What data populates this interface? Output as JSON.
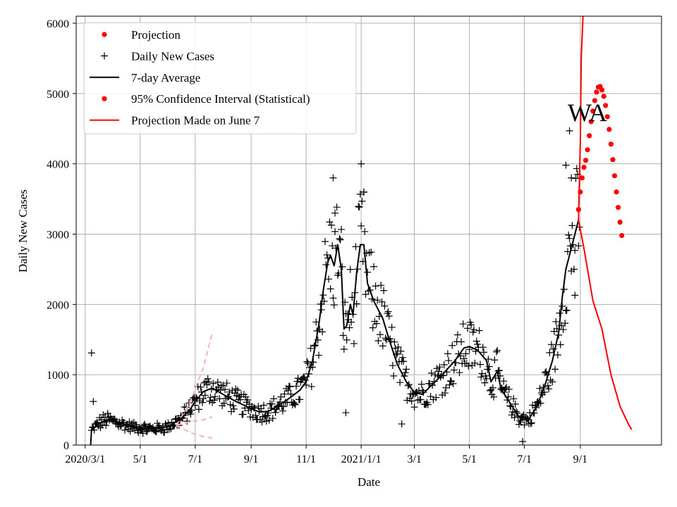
{
  "chart_data": {
    "type": "line",
    "title": "",
    "annotation": "WA",
    "xlabel": "Date",
    "ylabel": "Daily New Cases",
    "xlim": [
      "2020-02-20",
      "2021-11-30"
    ],
    "ylim": [
      0,
      6100
    ],
    "grid": true,
    "x_ticks": [
      {
        "date": "2020-03-01",
        "label": "2020/3/1"
      },
      {
        "date": "2020-05-01",
        "label": "5/1"
      },
      {
        "date": "2020-07-01",
        "label": "7/1"
      },
      {
        "date": "2020-09-01",
        "label": "9/1"
      },
      {
        "date": "2020-11-01",
        "label": "11/1"
      },
      {
        "date": "2021-01-01",
        "label": "2021/1/1"
      },
      {
        "date": "2021-03-01",
        "label": "3/1"
      },
      {
        "date": "2021-05-01",
        "label": "5/1"
      },
      {
        "date": "2021-07-01",
        "label": "7/1"
      },
      {
        "date": "2021-09-01",
        "label": "9/1"
      }
    ],
    "y_ticks": [
      0,
      1000,
      2000,
      3000,
      4000,
      5000,
      6000
    ],
    "legend": {
      "position": "top-left",
      "entries": [
        {
          "label": "Projection",
          "marker": "dot",
          "color": "#ff0000"
        },
        {
          "label": "Daily New Cases",
          "marker": "plus",
          "color": "#000000"
        },
        {
          "label": "7-day Average",
          "marker": "line",
          "color": "#000000"
        },
        {
          "label": "95% Confidence Interval (Statistical)",
          "marker": "dot",
          "color": "#ff0000"
        },
        {
          "label": "Projection Made on June 7",
          "marker": "line",
          "color": "#ff0000"
        }
      ]
    },
    "series": [
      {
        "name": "7-day Average",
        "style": "line",
        "color": "#000000",
        "points": [
          [
            "2020-03-07",
            0
          ],
          [
            "2020-03-08",
            200
          ],
          [
            "2020-03-15",
            300
          ],
          [
            "2020-03-25",
            360
          ],
          [
            "2020-04-05",
            330
          ],
          [
            "2020-04-20",
            260
          ],
          [
            "2020-05-01",
            240
          ],
          [
            "2020-05-15",
            230
          ],
          [
            "2020-06-01",
            260
          ],
          [
            "2020-06-15",
            370
          ],
          [
            "2020-06-25",
            500
          ],
          [
            "2020-07-01",
            620
          ],
          [
            "2020-07-10",
            760
          ],
          [
            "2020-07-20",
            810
          ],
          [
            "2020-08-01",
            720
          ],
          [
            "2020-08-15",
            620
          ],
          [
            "2020-09-01",
            520
          ],
          [
            "2020-09-10",
            470
          ],
          [
            "2020-09-20",
            480
          ],
          [
            "2020-10-01",
            560
          ],
          [
            "2020-10-15",
            680
          ],
          [
            "2020-10-25",
            780
          ],
          [
            "2020-11-01",
            900
          ],
          [
            "2020-11-08",
            1200
          ],
          [
            "2020-11-15",
            1700
          ],
          [
            "2020-11-20",
            2200
          ],
          [
            "2020-11-25",
            2600
          ],
          [
            "2020-11-28",
            2700
          ],
          [
            "2020-12-02",
            2550
          ],
          [
            "2020-12-06",
            2850
          ],
          [
            "2020-12-10",
            2500
          ],
          [
            "2020-12-13",
            1650
          ],
          [
            "2020-12-16",
            1700
          ],
          [
            "2020-12-20",
            2000
          ],
          [
            "2020-12-23",
            1850
          ],
          [
            "2020-12-27",
            2450
          ],
          [
            "2020-12-31",
            2850
          ],
          [
            "2021-01-04",
            2850
          ],
          [
            "2021-01-08",
            2300
          ],
          [
            "2021-01-15",
            2050
          ],
          [
            "2021-01-25",
            1800
          ],
          [
            "2021-02-01",
            1500
          ],
          [
            "2021-02-10",
            1150
          ],
          [
            "2021-02-20",
            900
          ],
          [
            "2021-03-01",
            750
          ],
          [
            "2021-03-10",
            720
          ],
          [
            "2021-03-20",
            850
          ],
          [
            "2021-04-01",
            1000
          ],
          [
            "2021-04-15",
            1200
          ],
          [
            "2021-04-25",
            1380
          ],
          [
            "2021-05-01",
            1400
          ],
          [
            "2021-05-10",
            1350
          ],
          [
            "2021-05-20",
            1200
          ],
          [
            "2021-05-25",
            900
          ],
          [
            "2021-06-01",
            1050
          ],
          [
            "2021-06-05",
            800
          ],
          [
            "2021-06-15",
            600
          ],
          [
            "2021-06-25",
            400
          ],
          [
            "2021-07-05",
            350
          ],
          [
            "2021-07-15",
            550
          ],
          [
            "2021-07-25",
            900
          ],
          [
            "2021-08-01",
            1200
          ],
          [
            "2021-08-08",
            1600
          ],
          [
            "2021-08-12",
            2100
          ],
          [
            "2021-08-16",
            2500
          ],
          [
            "2021-08-20",
            2700
          ],
          [
            "2021-08-24",
            2900
          ],
          [
            "2021-08-28",
            3100
          ],
          [
            "2021-08-30",
            3200
          ]
        ]
      },
      {
        "name": "Projection Made on June 7",
        "style": "line",
        "color": "#ff0000",
        "segments": [
          [
            [
              "2021-08-30",
              3200
            ],
            [
              "2021-09-01",
              4300
            ],
            [
              "2021-09-02",
              5500
            ],
            [
              "2021-09-04",
              6100
            ]
          ],
          [
            [
              "2021-08-30",
              3200
            ],
            [
              "2021-09-05",
              2800
            ],
            [
              "2021-09-15",
              2050
            ],
            [
              "2021-09-25",
              1650
            ],
            [
              "2021-10-05",
              1000
            ],
            [
              "2021-10-15",
              550
            ],
            [
              "2021-10-25",
              280
            ],
            [
              "2021-10-28",
              220
            ]
          ]
        ]
      },
      {
        "name": "Projection",
        "style": "dots",
        "color": "#ff0000",
        "points": [
          [
            "2021-08-30",
            3350
          ],
          [
            "2021-09-01",
            3600
          ],
          [
            "2021-09-03",
            3800
          ],
          [
            "2021-09-05",
            3950
          ],
          [
            "2021-09-07",
            4050
          ],
          [
            "2021-09-09",
            4200
          ],
          [
            "2021-09-11",
            4400
          ],
          [
            "2021-09-13",
            4600
          ],
          [
            "2021-09-15",
            4750
          ],
          [
            "2021-09-17",
            4900
          ],
          [
            "2021-09-19",
            5020
          ],
          [
            "2021-09-21",
            5090
          ],
          [
            "2021-09-23",
            5100
          ],
          [
            "2021-09-25",
            5050
          ],
          [
            "2021-09-27",
            4960
          ],
          [
            "2021-09-29",
            4830
          ],
          [
            "2021-10-01",
            4670
          ],
          [
            "2021-10-03",
            4490
          ],
          [
            "2021-10-05",
            4280
          ],
          [
            "2021-10-07",
            4060
          ],
          [
            "2021-10-09",
            3830
          ],
          [
            "2021-10-11",
            3600
          ],
          [
            "2021-10-13",
            3380
          ],
          [
            "2021-10-15",
            3170
          ],
          [
            "2021-10-17",
            2980
          ]
        ]
      },
      {
        "name": "Early Projection Band",
        "style": "dashed",
        "color": "#ffb0b0",
        "segments": [
          [
            [
              "2020-06-10",
              280
            ],
            [
              "2020-06-25",
              600
            ],
            [
              "2020-07-10",
              1100
            ],
            [
              "2020-07-20",
              1600
            ]
          ],
          [
            [
              "2020-06-10",
              280
            ],
            [
              "2020-06-25",
              180
            ],
            [
              "2020-07-10",
              120
            ],
            [
              "2020-07-20",
              100
            ]
          ],
          [
            [
              "2020-06-10",
              280
            ],
            [
              "2020-06-25",
              330
            ],
            [
              "2020-07-10",
              360
            ],
            [
              "2020-07-20",
              400
            ]
          ]
        ]
      },
      {
        "name": "Daily New Cases",
        "style": "plus",
        "color": "#000000",
        "generator": "daily-scatter-around-7-day-average",
        "range": [
          "2020-03-08",
          "2021-08-31"
        ],
        "highlights": [
          [
            "2020-03-08",
            1310
          ],
          [
            "2020-03-10",
            620
          ],
          [
            "2020-12-01",
            3800
          ],
          [
            "2020-12-03",
            3300
          ],
          [
            "2021-01-01",
            4000
          ],
          [
            "2021-01-04",
            3600
          ],
          [
            "2021-08-20",
            4470
          ],
          [
            "2021-08-16",
            3980
          ],
          [
            "2021-08-22",
            3800
          ],
          [
            "2021-08-26",
            2130
          ],
          [
            "2021-06-29",
            50
          ],
          [
            "2021-02-15",
            300
          ],
          [
            "2020-12-15",
            460
          ]
        ]
      }
    ]
  }
}
